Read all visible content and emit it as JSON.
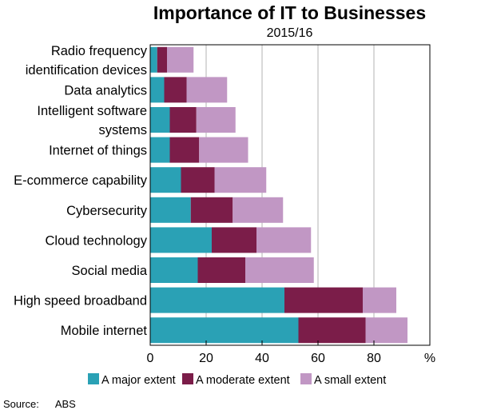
{
  "chart_data": {
    "type": "bar",
    "orientation": "horizontal",
    "stacked": true,
    "title": "Importance of IT to Businesses",
    "subtitle": "2015/16",
    "categories": [
      [
        "Radio frequency",
        "identification devices"
      ],
      [
        "Data analytics"
      ],
      [
        "Intelligent software",
        "systems"
      ],
      [
        "Internet of things"
      ],
      [
        "E-commerce capability"
      ],
      [
        "Cybersecurity"
      ],
      [
        "Cloud technology"
      ],
      [
        "Social media"
      ],
      [
        "High speed broadband"
      ],
      [
        "Mobile internet"
      ]
    ],
    "series": [
      {
        "name": "A major extent",
        "color": "#2aa1b5",
        "values": [
          2.5,
          5,
          7,
          7,
          11,
          14.5,
          22,
          17,
          48,
          53
        ]
      },
      {
        "name": "A moderate extent",
        "color": "#7b1d49",
        "values": [
          3.5,
          8,
          9.5,
          10.5,
          12,
          15,
          16,
          17,
          28,
          24
        ]
      },
      {
        "name": "A small extent",
        "color": "#c197c4",
        "values": [
          9.5,
          14.5,
          14,
          17.5,
          18.5,
          18,
          19.5,
          24.5,
          12,
          15
        ]
      }
    ],
    "xlim": [
      0,
      100
    ],
    "xticks": [
      "0",
      "20",
      "40",
      "60",
      "80"
    ],
    "unit": "%",
    "grid": "vertical",
    "legend_position": "bottom",
    "source_label": "Source:",
    "source_value": "ABS"
  }
}
